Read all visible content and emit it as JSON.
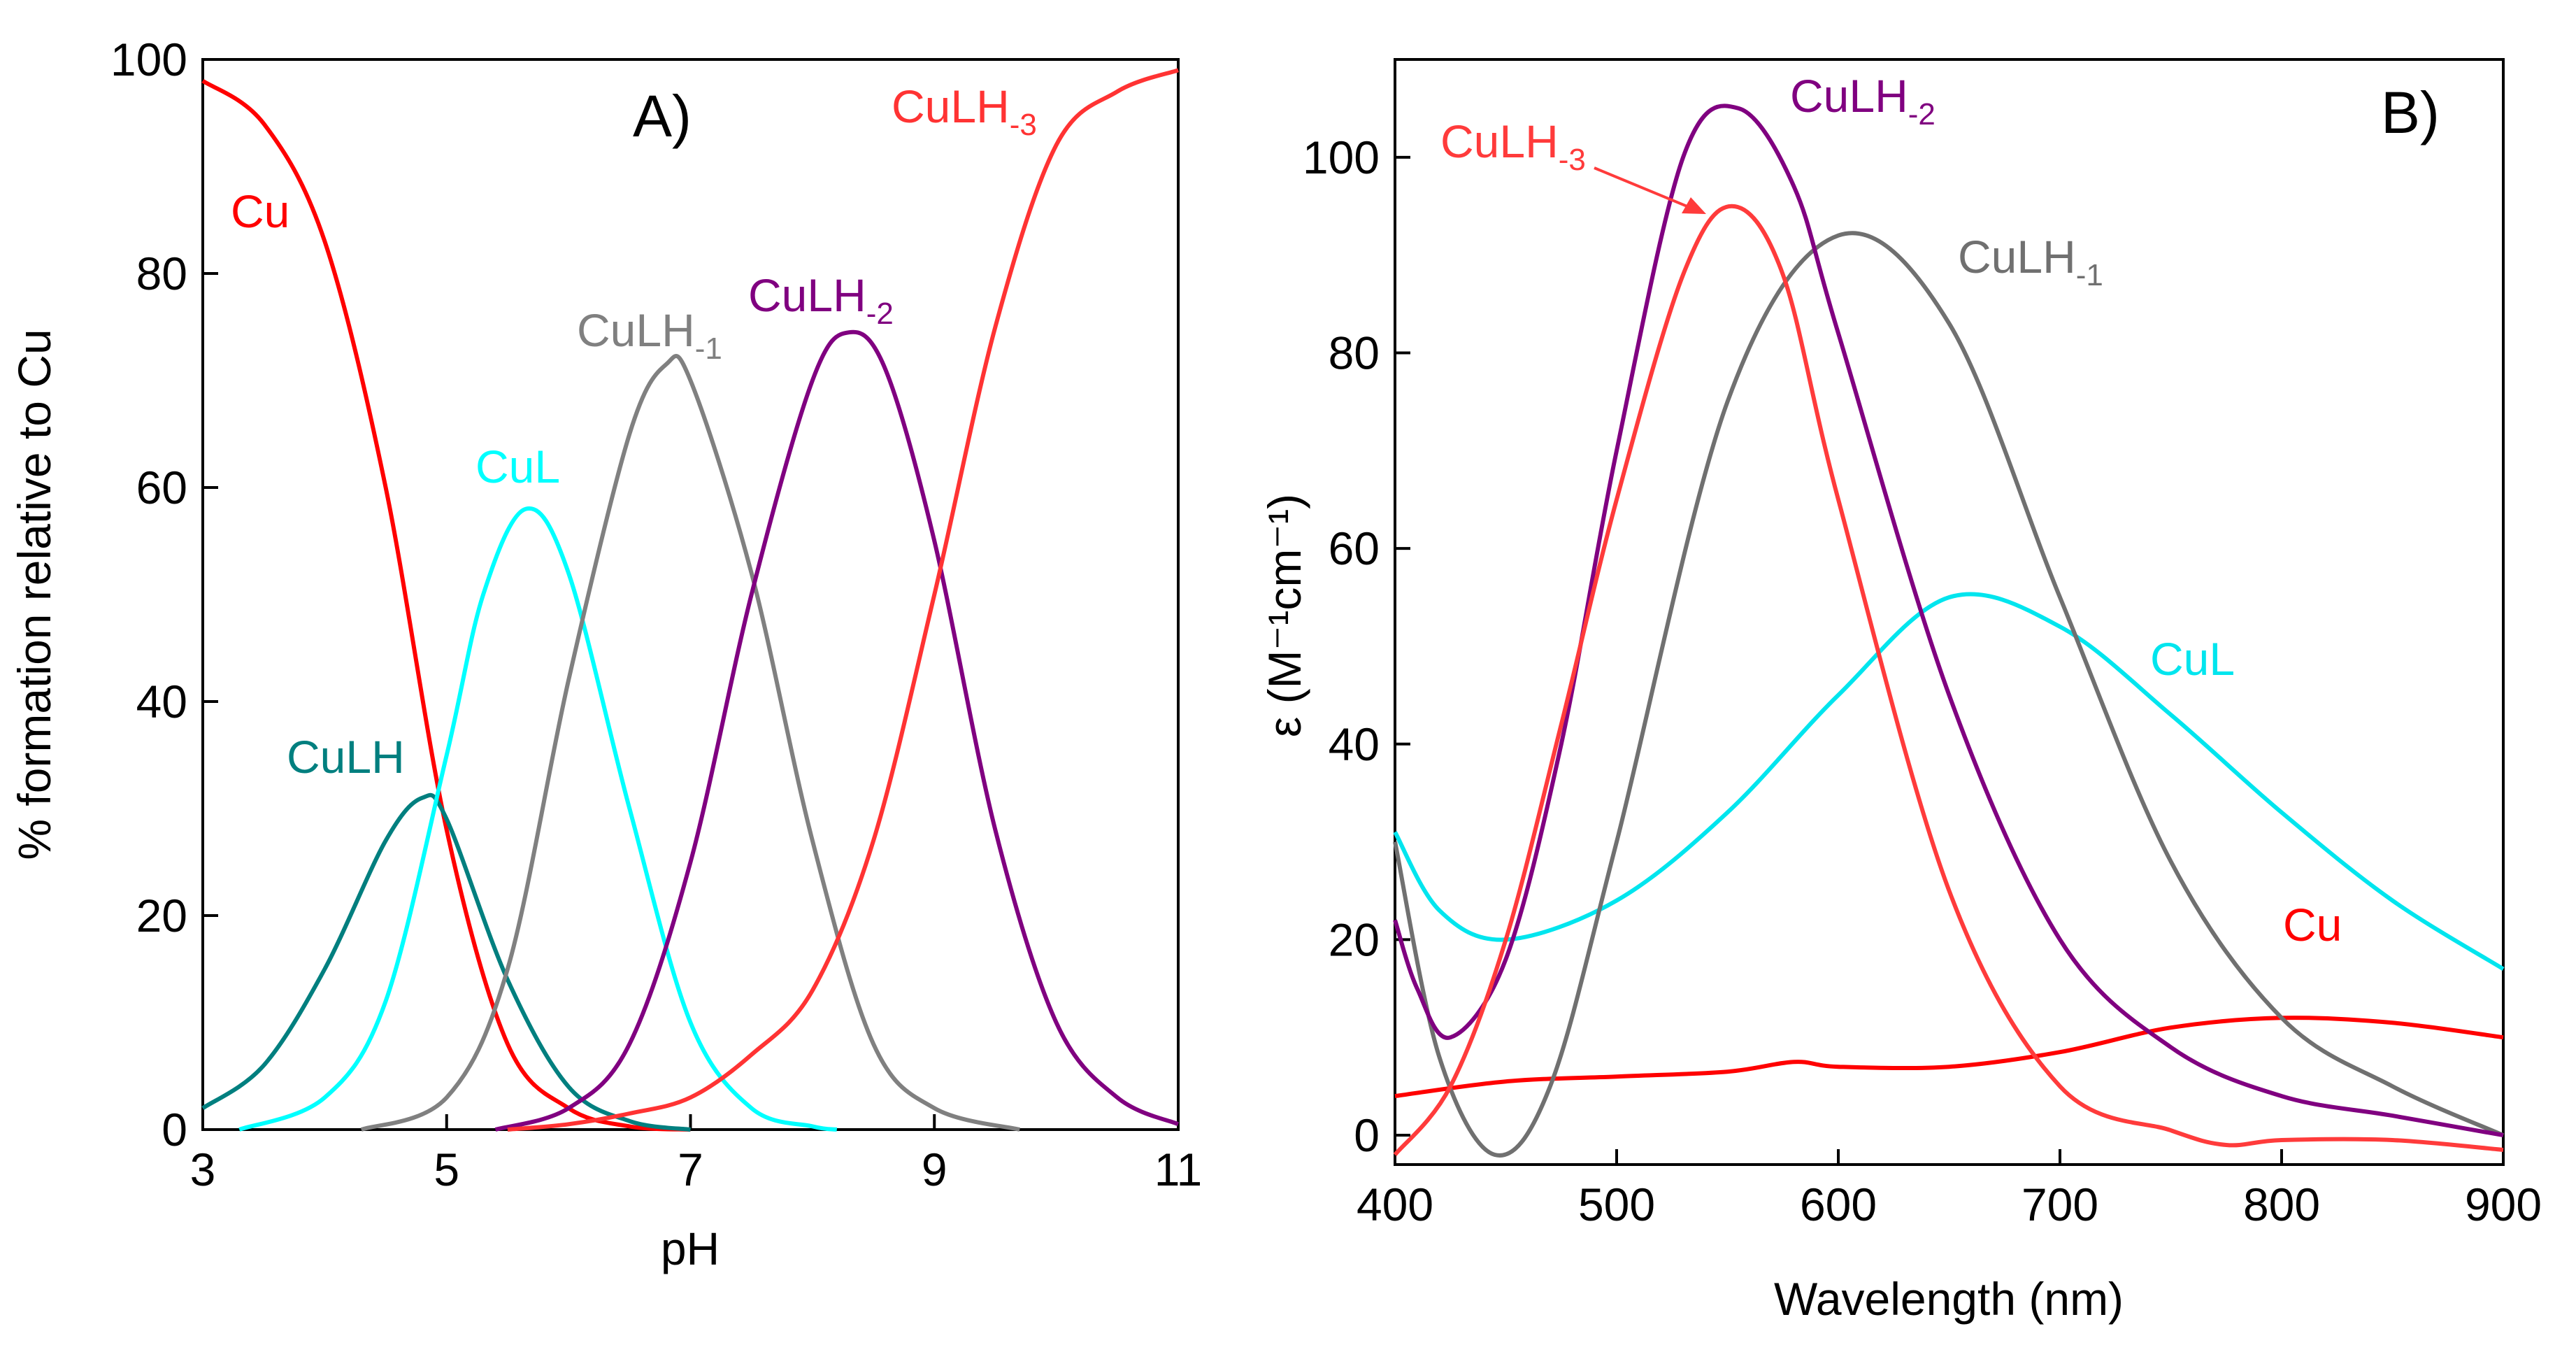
{
  "chart_data": [
    {
      "type": "line",
      "panel_label": "A)",
      "xlabel": "pH",
      "ylabel": "% formation relative to Cu",
      "xlim": [
        3,
        11
      ],
      "ylim": [
        0,
        100
      ],
      "xticks": [
        "3",
        "5",
        "7",
        "9",
        "11"
      ],
      "yticks": [
        "0",
        "20",
        "40",
        "60",
        "80",
        "100"
      ],
      "series": [
        {
          "name": "Cu",
          "label": "Cu",
          "sub": "",
          "color": "#ff0000",
          "x": [
            3.0,
            3.5,
            4.0,
            4.5,
            5.0,
            5.5,
            6.0,
            6.5,
            7.0
          ],
          "y": [
            98,
            94,
            83,
            60,
            28,
            8,
            2,
            0.3,
            0
          ]
        },
        {
          "name": "CuLH",
          "label": "CuLH",
          "sub": "",
          "color": "#007f7f",
          "x": [
            3.0,
            3.5,
            4.0,
            4.5,
            4.8,
            5.0,
            5.5,
            6.0,
            6.5,
            7.0
          ],
          "y": [
            2,
            6,
            15,
            27,
            31,
            29,
            14,
            4,
            0.8,
            0
          ]
        },
        {
          "name": "CuL",
          "label": "CuL",
          "sub": "",
          "color": "#00ffff",
          "x": [
            3.3,
            4.0,
            4.5,
            5.0,
            5.3,
            5.65,
            6.0,
            6.5,
            7.0,
            7.5,
            8.0,
            8.2
          ],
          "y": [
            0,
            3,
            12,
            35,
            50,
            58,
            52,
            30,
            10,
            2,
            0.3,
            0
          ]
        },
        {
          "name": "CuLH-1",
          "label": "CuLH",
          "sub": "-1",
          "color": "#808080",
          "x": [
            4.3,
            5.0,
            5.5,
            6.0,
            6.5,
            6.8,
            7.0,
            7.5,
            8.0,
            8.5,
            9.0,
            9.7
          ],
          "y": [
            0,
            3,
            15,
            42,
            65,
            71.5,
            70,
            52,
            27,
            8,
            2,
            0
          ]
        },
        {
          "name": "CuLH-2",
          "label": "CuLH",
          "sub": "-2",
          "color": "#800080",
          "x": [
            5.4,
            6.0,
            6.5,
            7.0,
            7.5,
            8.0,
            8.3,
            8.6,
            9.0,
            9.5,
            10.0,
            10.5,
            11.0
          ],
          "y": [
            0,
            2,
            8,
            25,
            50,
            70,
            74.5,
            71,
            55,
            28,
            10,
            3,
            0.5
          ]
        },
        {
          "name": "CuLH-3",
          "label": "CuLH",
          "sub": "-3",
          "color": "#ff3333",
          "x": [
            5.5,
            6.0,
            6.5,
            7.0,
            7.5,
            8.0,
            8.5,
            9.0,
            9.5,
            10.0,
            10.5,
            11.0
          ],
          "y": [
            0,
            0.5,
            1.5,
            3,
            7,
            13,
            27,
            50,
            75,
            92,
            97,
            99
          ]
        }
      ]
    },
    {
      "type": "line",
      "panel_label": "B)",
      "xlabel": "Wavelength (nm)",
      "ylabel": "ε (M⁻¹cm⁻¹)",
      "xlim": [
        400,
        900
      ],
      "ylim": [
        -3,
        110
      ],
      "xticks": [
        "400",
        "500",
        "600",
        "700",
        "800",
        "900"
      ],
      "yticks": [
        "0",
        "20",
        "40",
        "60",
        "80",
        "100"
      ],
      "series": [
        {
          "name": "Cu",
          "label": "Cu",
          "sub": "",
          "color": "#ff0000",
          "x": [
            400,
            450,
            500,
            550,
            580,
            600,
            650,
            700,
            750,
            800,
            850,
            900
          ],
          "y": [
            4,
            5.5,
            6,
            6.5,
            7.5,
            7,
            7,
            8.5,
            11,
            12,
            11.5,
            10
          ]
        },
        {
          "name": "CuL",
          "label": "CuL",
          "sub": "",
          "color": "#00e5ee",
          "x": [
            400,
            420,
            450,
            500,
            550,
            600,
            650,
            700,
            750,
            800,
            850,
            900
          ],
          "y": [
            31,
            23,
            20,
            24,
            33,
            45,
            55,
            52,
            43,
            33,
            24,
            17
          ]
        },
        {
          "name": "CuLH-1",
          "label": "CuLH",
          "sub": "-1",
          "color": "#707070",
          "x": [
            400,
            420,
            445,
            470,
            500,
            550,
            600,
            650,
            700,
            750,
            800,
            850,
            900
          ],
          "y": [
            30,
            8,
            -2,
            5,
            30,
            75,
            92,
            83,
            55,
            28,
            12,
            5,
            0
          ]
        },
        {
          "name": "CuLH-2",
          "label": "CuLH",
          "sub": "-2",
          "color": "#800080",
          "x": [
            400,
            410,
            425,
            450,
            475,
            500,
            530,
            555,
            580,
            600,
            650,
            700,
            750,
            800,
            850,
            900
          ],
          "y": [
            22,
            15,
            10,
            18,
            40,
            70,
            100,
            105,
            97,
            82,
            45,
            20,
            9,
            4,
            2,
            0
          ]
        },
        {
          "name": "CuLH-3",
          "label": "CuLH",
          "sub": "-3",
          "color": "#ff3b3b",
          "x": [
            400,
            425,
            450,
            475,
            500,
            530,
            552,
            575,
            600,
            650,
            700,
            750,
            775,
            800,
            850,
            900
          ],
          "y": [
            -2,
            5,
            20,
            42,
            65,
            88,
            95,
            88,
            65,
            25,
            5,
            0.5,
            -1,
            -0.5,
            -0.5,
            -1.5
          ]
        }
      ]
    }
  ]
}
